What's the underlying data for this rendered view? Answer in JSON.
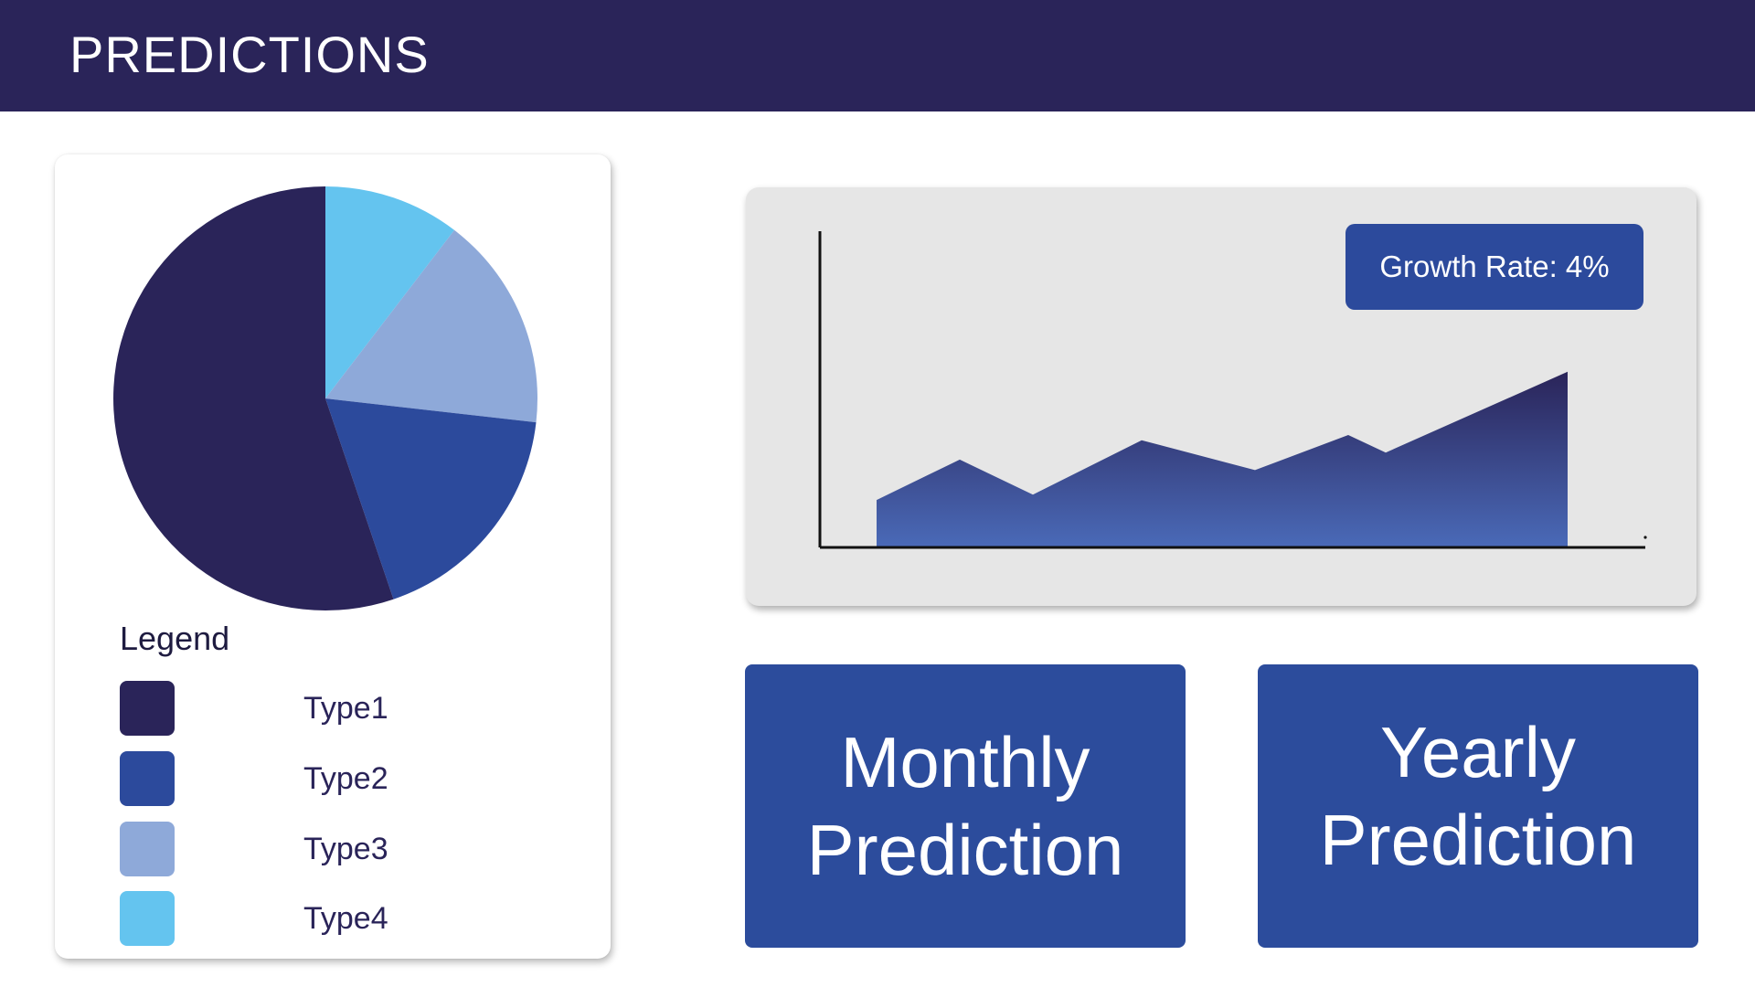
{
  "header": {
    "title": "PREDICTIONS",
    "background_color": "#2a2459"
  },
  "pie_panel": {
    "legend_title": "Legend",
    "legend": [
      {
        "label": "Type1",
        "color": "#2a2459"
      },
      {
        "label": "Type2",
        "color": "#2c4a9c"
      },
      {
        "label": "Type3",
        "color": "#8ea9d9"
      },
      {
        "label": "Type4",
        "color": "#64c4ef"
      }
    ]
  },
  "growth_panel": {
    "badge_text": "Growth Rate: 4%",
    "area_gradient": [
      "#2a2459",
      "#4a6ab8"
    ]
  },
  "buttons": {
    "monthly_line1": "Monthly",
    "monthly_line2": "Prediction",
    "yearly_line1": "Yearly",
    "yearly_line2": "Prediction",
    "color": "#2c4c9c"
  },
  "chart_data": [
    {
      "type": "pie",
      "categories": [
        "Type1",
        "Type2",
        "Type3",
        "Type4"
      ],
      "values": [
        55.2,
        18.0,
        16.4,
        10.4
      ],
      "colors": [
        "#2a2459",
        "#2c4a9c",
        "#8ea9d9",
        "#64c4ef"
      ],
      "legend": "bottom"
    },
    {
      "type": "area",
      "x": [
        0,
        1,
        2,
        3,
        4,
        5,
        6,
        7
      ],
      "y": [
        27,
        50,
        30,
        61,
        44,
        64,
        54,
        100
      ],
      "ylim": [
        0,
        180
      ],
      "xlabel": "",
      "ylabel": "",
      "grid": false
    }
  ]
}
